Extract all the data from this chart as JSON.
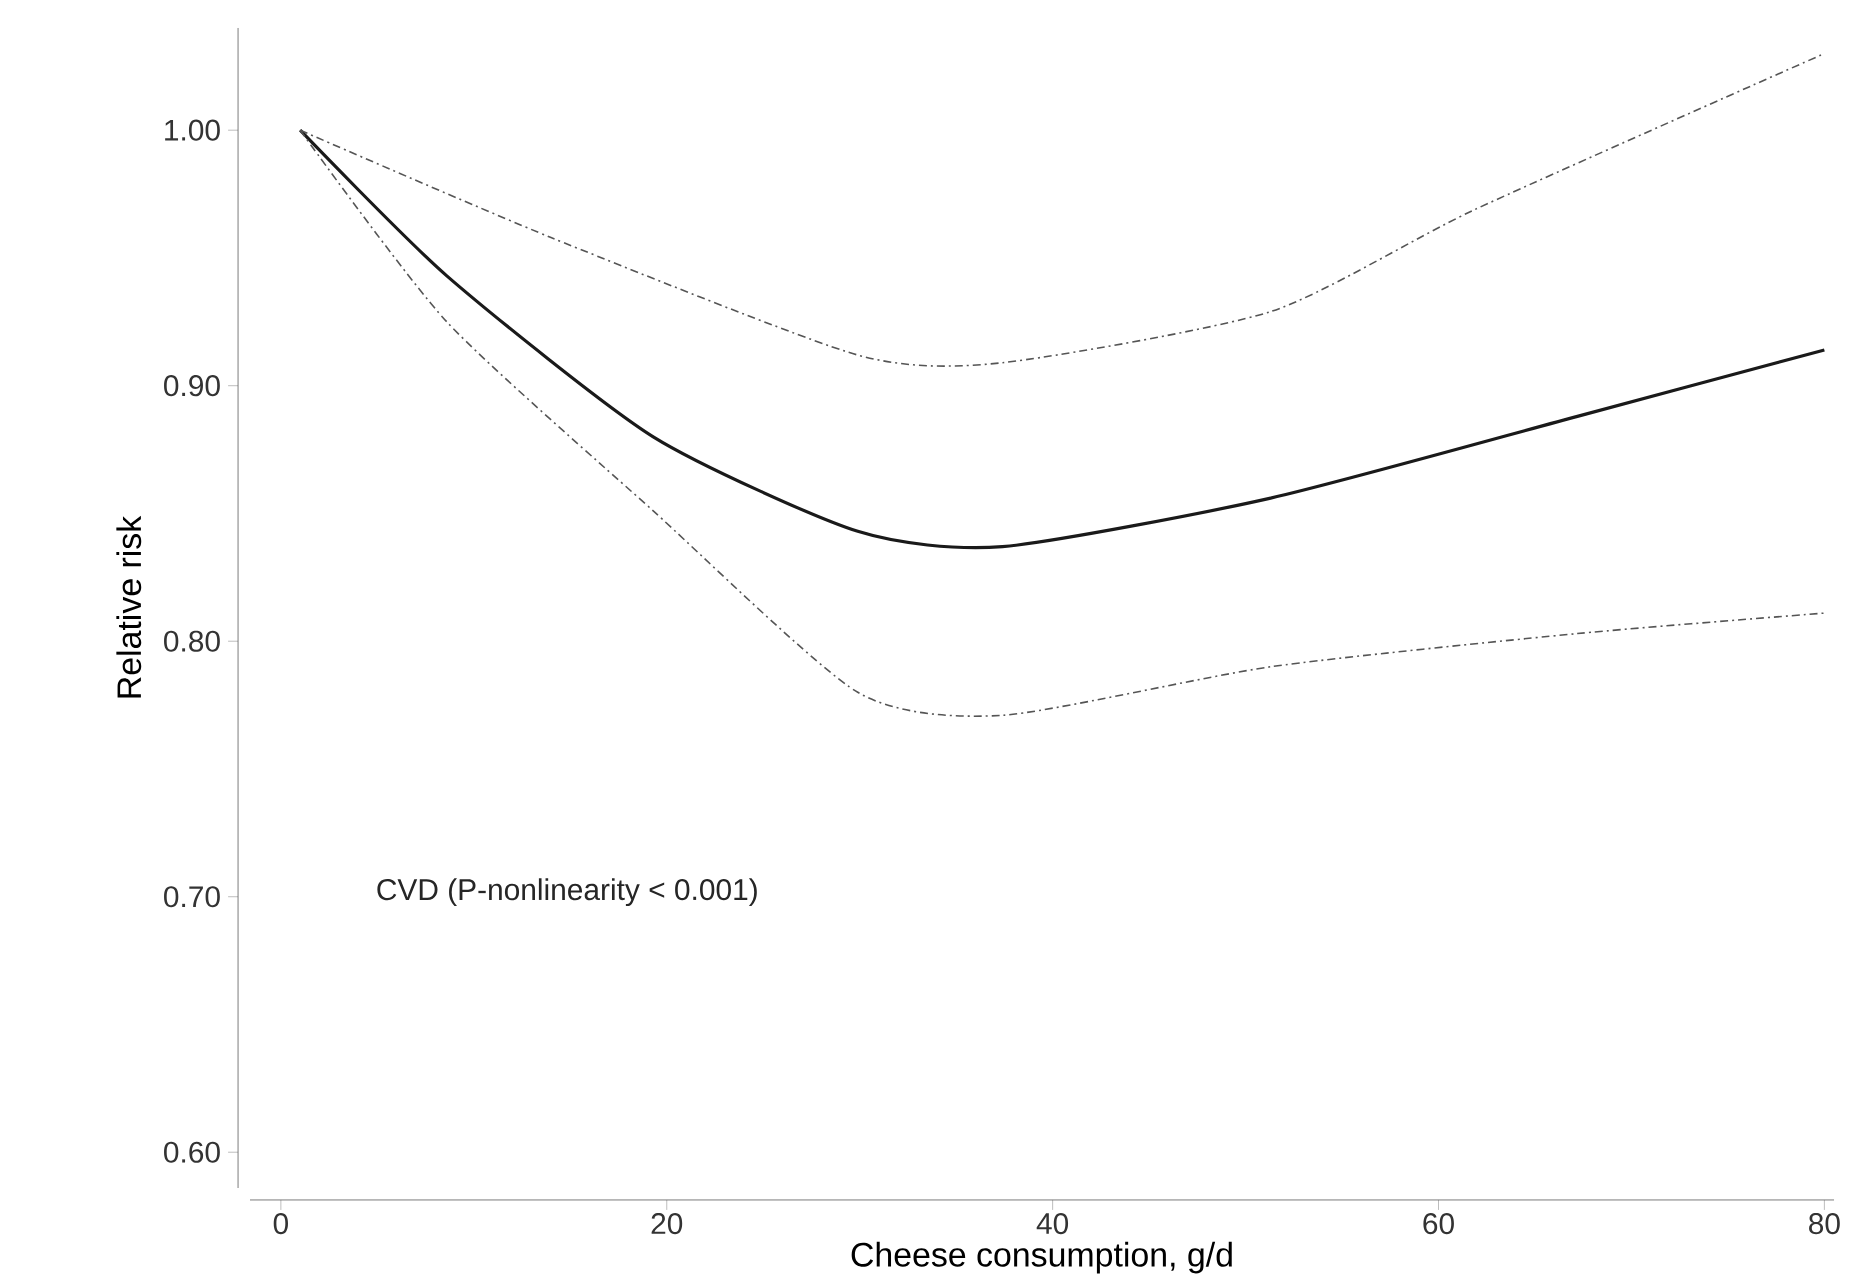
{
  "chart_data": {
    "type": "line",
    "xlabel": "Cheese consumption, g/d",
    "ylabel": "Relative risk",
    "annotations": [
      "CVD (P-nonlinearity < 0.001)"
    ],
    "xlim": [
      -1.6,
      80.5
    ],
    "ylim": [
      0.586,
      1.04
    ],
    "xticks": [
      0,
      20,
      40,
      60,
      80
    ],
    "yticks": [
      {
        "value": 0.6,
        "label": "0.60"
      },
      {
        "value": 0.7,
        "label": "0.70"
      },
      {
        "value": 0.8,
        "label": "0.80"
      },
      {
        "value": 0.9,
        "label": "0.90"
      },
      {
        "value": 1.0,
        "label": "1.00"
      }
    ],
    "grid": false,
    "marker": "none",
    "series": [
      {
        "color": "#1a1a1a",
        "line_style": "solid",
        "x": [
          1,
          8.6,
          19.3,
          29.9,
          37.4,
          51.3,
          67.2,
          80
        ],
        "values": [
          1.0,
          0.943,
          0.88,
          0.843,
          0.837,
          0.856,
          0.888,
          0.914
        ]
      },
      {
        "color": "#555555",
        "line_style": "dashdot",
        "x": [
          1,
          14,
          29.9,
          37.4,
          51.3,
          61.9,
          80
        ],
        "values": [
          1.0,
          0.958,
          0.912,
          0.909,
          0.929,
          0.969,
          1.03
        ]
      },
      {
        "color": "#555555",
        "line_style": "dashdot",
        "x": [
          1,
          8.6,
          19.3,
          29.9,
          37.4,
          51.3,
          67.2,
          80
        ],
        "values": [
          1.0,
          0.925,
          0.851,
          0.78,
          0.771,
          0.79,
          0.803,
          0.811
        ]
      }
    ]
  }
}
